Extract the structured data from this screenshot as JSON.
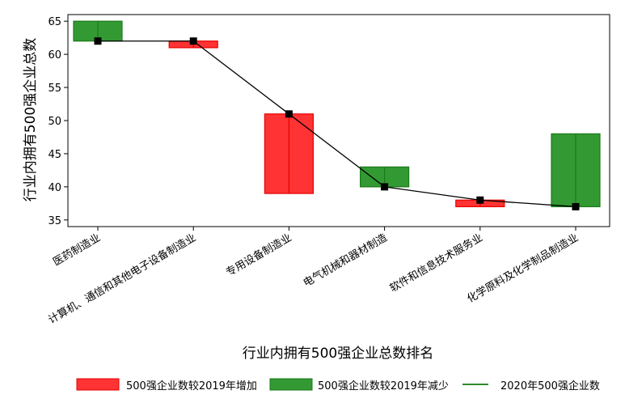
{
  "chart_data": {
    "type": "bar",
    "title": "",
    "xlabel": "行业内拥有500强企业总数排名",
    "ylabel": "行业内拥有500强企业总数",
    "ylim": [
      34,
      66
    ],
    "yticks": [
      35,
      40,
      45,
      50,
      55,
      60,
      65
    ],
    "categories": [
      "医药制造业",
      "计算机、通信和其他电子设备制造业",
      "专用设备制造业",
      "电气机械和器材制造",
      "软件和信息技术服务业",
      "化学原料及化学制品制造业"
    ],
    "series": [
      {
        "name": "500强企业数较2019年增加",
        "low": [
          null,
          61,
          39,
          null,
          37,
          null
        ],
        "high": [
          null,
          62,
          51,
          null,
          38,
          null
        ]
      },
      {
        "name": "500强企业数较2019年减少",
        "low": [
          62,
          null,
          null,
          40,
          null,
          37
        ],
        "high": [
          65,
          null,
          null,
          43,
          null,
          48
        ]
      },
      {
        "name": "2020年500强企业数",
        "values": [
          62,
          62,
          51,
          40,
          38,
          37
        ]
      }
    ],
    "grid": false,
    "legend_position": "bottom",
    "colors": {
      "increase_fill": "#ff3333",
      "increase_edge": "#e60000",
      "decrease_fill": "#339933",
      "decrease_edge": "#1a7a1a",
      "line": "#000000",
      "legend_line": "#2e8b2e",
      "marker": "#000000"
    }
  }
}
